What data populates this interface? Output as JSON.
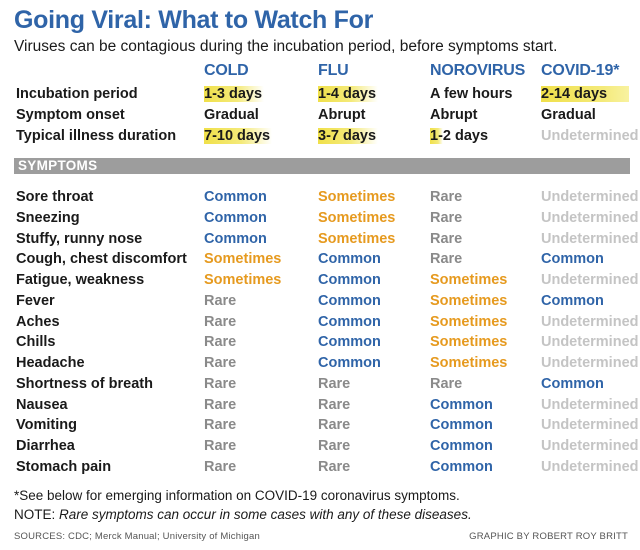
{
  "title": "Going Viral: What to Watch For",
  "subtitle": "Viruses can be contagious during the incubation period, before symptoms start.",
  "columns": [
    "COLD",
    "FLU",
    "NOROVIRUS",
    "COVID-19*"
  ],
  "top_rows": [
    {
      "label": "Incubation period",
      "values": [
        "1-3 days",
        "1-4 days",
        "A few hours",
        "2-14 days"
      ]
    },
    {
      "label": "Symptom onset",
      "values": [
        "Gradual",
        "Abrupt",
        "Abrupt",
        "Gradual"
      ]
    },
    {
      "label": "Typical illness duration",
      "values": [
        "7-10 days",
        "3-7 days",
        "1-2 days",
        "Undetermined"
      ]
    }
  ],
  "section_label": "SYMPTOMS",
  "symptoms": [
    {
      "label": "Sore throat",
      "values": [
        "Common",
        "Sometimes",
        "Rare",
        "Undetermined"
      ]
    },
    {
      "label": "Sneezing",
      "values": [
        "Common",
        "Sometimes",
        "Rare",
        "Undetermined"
      ]
    },
    {
      "label": "Stuffy, runny nose",
      "values": [
        "Common",
        "Sometimes",
        "Rare",
        "Undetermined"
      ]
    },
    {
      "label": "Cough, chest discomfort",
      "values": [
        "Sometimes",
        "Common",
        "Rare",
        "Common"
      ]
    },
    {
      "label": "Fatigue, weakness",
      "values": [
        "Sometimes",
        "Common",
        "Sometimes",
        "Undetermined"
      ]
    },
    {
      "label": "Fever",
      "values": [
        "Rare",
        "Common",
        "Sometimes",
        "Common"
      ]
    },
    {
      "label": "Aches",
      "values": [
        "Rare",
        "Common",
        "Sometimes",
        "Undetermined"
      ]
    },
    {
      "label": "Chills",
      "values": [
        "Rare",
        "Common",
        "Sometimes",
        "Undetermined"
      ]
    },
    {
      "label": "Headache",
      "values": [
        "Rare",
        "Common",
        "Sometimes",
        "Undetermined"
      ]
    },
    {
      "label": "Shortness of breath",
      "values": [
        "Rare",
        "Rare",
        "Rare",
        "Common"
      ]
    },
    {
      "label": "Nausea",
      "values": [
        "Rare",
        "Rare",
        "Common",
        "Undetermined"
      ]
    },
    {
      "label": "Vomiting",
      "values": [
        "Rare",
        "Rare",
        "Common",
        "Undetermined"
      ]
    },
    {
      "label": "Diarrhea",
      "values": [
        "Rare",
        "Rare",
        "Common",
        "Undetermined"
      ]
    },
    {
      "label": "Stomach pain",
      "values": [
        "Rare",
        "Rare",
        "Common",
        "Undetermined"
      ]
    }
  ],
  "footnote1": "*See below for emerging information on COVID-19 coronavirus symptoms.",
  "footnote2_prefix": "NOTE: ",
  "footnote2_italic": "Rare symptoms can occur in some cases with any of these diseases.",
  "sources": "SOURCES: CDC; Merck Manual; University of Michigan",
  "credit": "GRAPHIC BY ROBERT ROY BRITT",
  "colors": {
    "title_blue": "#2f64a8",
    "common": "#2f64a8",
    "sometimes": "#e69a1f",
    "rare": "#8a8a8a",
    "undetermined": "#c4c4c4",
    "highlight": "#f0e04a",
    "section_bar": "#9d9d9d"
  }
}
